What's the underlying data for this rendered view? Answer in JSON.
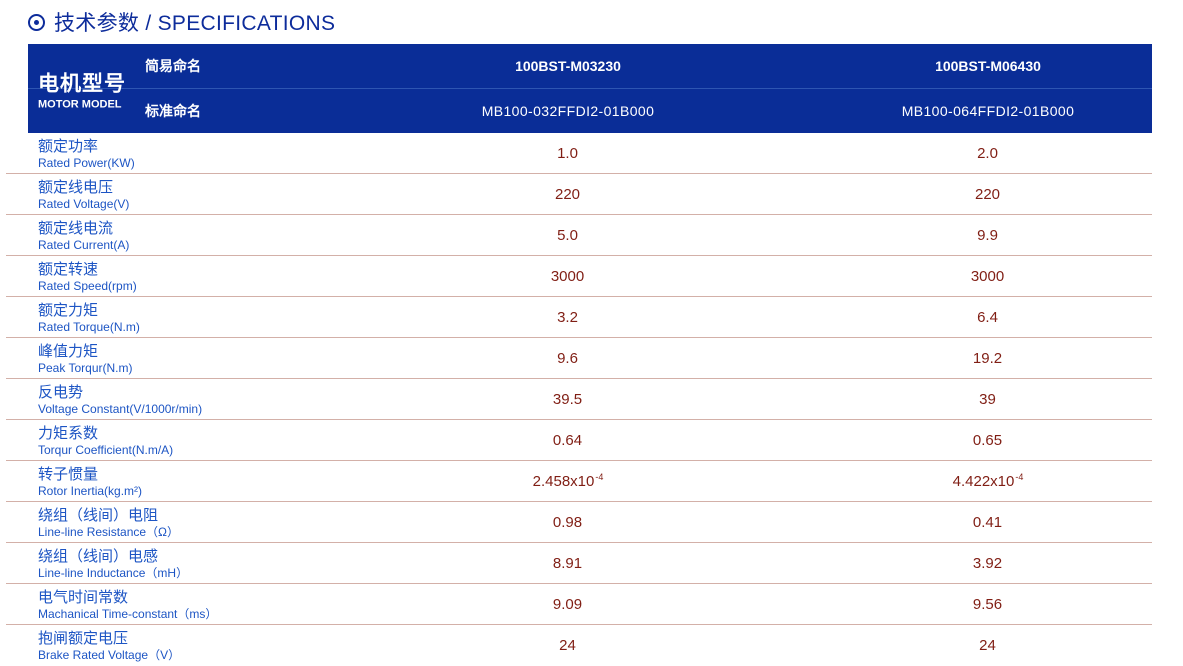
{
  "page": {
    "title": "技术参数 / SPECIFICATIONS"
  },
  "colors": {
    "header_bg": "#0a2d97",
    "header_divider": "#2e55b2",
    "title_blue": "#0d2c9b",
    "label_blue": "#1d55c4",
    "value_maroon": "#801e14",
    "row_divider": "#d3b0a8"
  },
  "table": {
    "header": {
      "motor_model_cn": "电机型号",
      "motor_model_en": "MOTOR MODEL",
      "simple_name_label": "简易命名",
      "standard_name_label": "标准命名",
      "models": [
        {
          "simple": "100BST-M03230",
          "standard": "MB100-032FFDI2-01B000"
        },
        {
          "simple": "100BST-M06430",
          "standard": "MB100-064FFDI2-01B000"
        }
      ]
    },
    "rows": [
      {
        "cn": "额定功率",
        "en": "Rated Power(KW)",
        "v1": "1.0",
        "v1_sup": "",
        "v2": "2.0",
        "v2_sup": ""
      },
      {
        "cn": "额定线电压",
        "en": "Rated Voltage(V)",
        "v1": "220",
        "v1_sup": "",
        "v2": "220",
        "v2_sup": ""
      },
      {
        "cn": "额定线电流",
        "en": "Rated Current(A)",
        "v1": "5.0",
        "v1_sup": "",
        "v2": "9.9",
        "v2_sup": ""
      },
      {
        "cn": "额定转速",
        "en": "Rated Speed(rpm)",
        "v1": "3000",
        "v1_sup": "",
        "v2": "3000",
        "v2_sup": ""
      },
      {
        "cn": "额定力矩",
        "en": "Rated Torque(N.m)",
        "v1": "3.2",
        "v1_sup": "",
        "v2": "6.4",
        "v2_sup": ""
      },
      {
        "cn": "峰值力矩",
        "en": "Peak Torqur(N.m)",
        "v1": "9.6",
        "v1_sup": "",
        "v2": "19.2",
        "v2_sup": ""
      },
      {
        "cn": "反电势",
        "en": "Voltage Constant(V/1000r/min)",
        "v1": "39.5",
        "v1_sup": "",
        "v2": "39",
        "v2_sup": ""
      },
      {
        "cn": "力矩系数",
        "en": "Torqur Coefficient(N.m/A)",
        "v1": "0.64",
        "v1_sup": "",
        "v2": "0.65",
        "v2_sup": ""
      },
      {
        "cn": "转子惯量",
        "en": "Rotor Inertia(kg.m²)",
        "v1": "2.458x10",
        "v1_sup": "-4",
        "v2": "4.422x10",
        "v2_sup": "-4"
      },
      {
        "cn": "绕组（线间）电阻",
        "en": "Line-line Resistance（Ω）",
        "v1": "0.98",
        "v1_sup": "",
        "v2": "0.41",
        "v2_sup": ""
      },
      {
        "cn": "绕组（线间）电感",
        "en": "Line-line Inductance（mH）",
        "v1": "8.91",
        "v1_sup": "",
        "v2": "3.92",
        "v2_sup": ""
      },
      {
        "cn": "电气时间常数",
        "en": "Machanical Time-constant（ms）",
        "v1": "9.09",
        "v1_sup": "",
        "v2": "9.56",
        "v2_sup": ""
      },
      {
        "cn": "抱闸额定电压",
        "en": "Brake Rated Voltage（V）",
        "v1": "24",
        "v1_sup": "",
        "v2": "24",
        "v2_sup": ""
      }
    ]
  }
}
